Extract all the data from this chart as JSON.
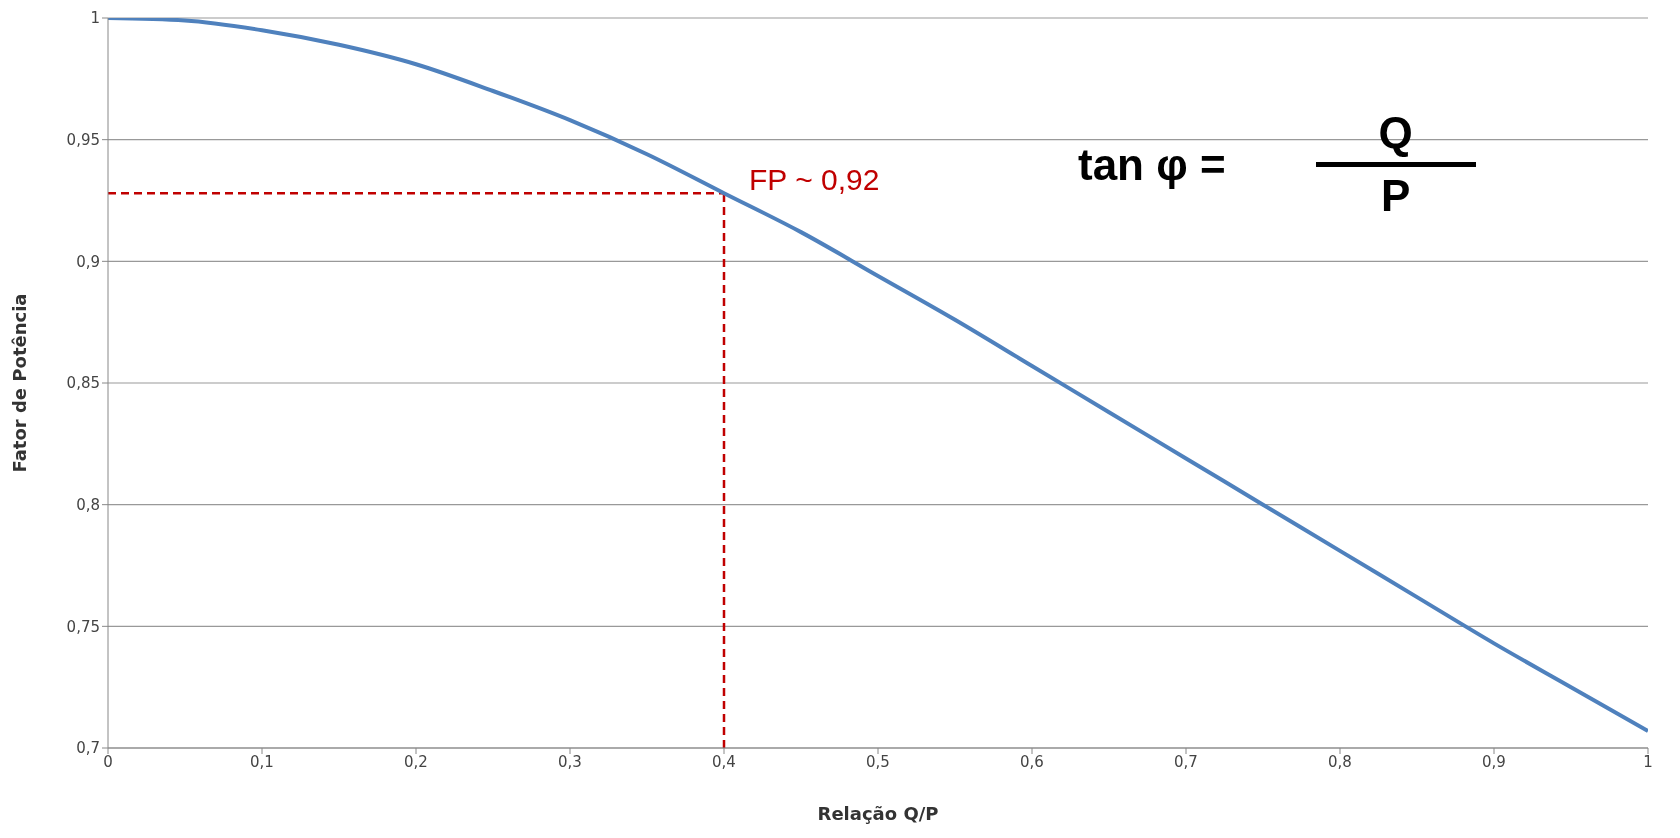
{
  "chart_data": {
    "type": "line",
    "xlabel": "Relação Q/P",
    "ylabel": "Fator de Potência",
    "x": [
      0,
      0.05,
      0.1,
      0.15,
      0.2,
      0.25,
      0.3,
      0.35,
      0.4,
      0.45,
      0.5,
      0.55,
      0.6,
      0.65,
      0.7,
      0.75,
      0.8,
      0.85,
      0.9,
      0.95,
      1
    ],
    "series": [
      {
        "color": "#4f81bd",
        "values": [
          1,
          0.999,
          0.995,
          0.989,
          0.981,
          0.97,
          0.958,
          0.944,
          0.928,
          0.912,
          0.894,
          0.876,
          0.857,
          0.838,
          0.819,
          0.8,
          0.781,
          0.762,
          0.743,
          0.725,
          0.707
        ]
      }
    ],
    "xlim": [
      0,
      1
    ],
    "xticks": [
      0,
      {
        "value": 0.1,
        "label": "0,1"
      },
      {
        "value": 0.2,
        "label": "0,2"
      },
      {
        "value": 0.3,
        "label": "0,3"
      },
      {
        "value": 0.4,
        "label": "0,4"
      },
      {
        "value": 0.5,
        "label": "0,5"
      },
      {
        "value": 0.6,
        "label": "0,6"
      },
      {
        "value": 0.7,
        "label": "0,7"
      },
      {
        "value": 0.8,
        "label": "0,8"
      },
      {
        "value": 0.9,
        "label": "0,9"
      },
      1
    ],
    "ylim": [
      0.7,
      1
    ],
    "yticks": [
      {
        "value": 0.7,
        "label": "0,7"
      },
      {
        "value": 0.75,
        "label": "0,75"
      },
      {
        "value": 0.8,
        "label": "0,8"
      },
      {
        "value": 0.85,
        "label": "0,85"
      },
      {
        "value": 0.9,
        "label": "0,9"
      },
      {
        "value": 0.95,
        "label": "0,95"
      },
      1
    ],
    "ref_lines": [
      {
        "axis": "y",
        "value": 0.928,
        "color": "#c00000",
        "line_style": "dashed"
      },
      {
        "axis": "x",
        "value": 0.4,
        "color": "#c00000",
        "line_style": "dashed"
      }
    ],
    "annotations": [
      {
        "text": "FP ~ 0,92",
        "x": 0.4,
        "y": 0.928
      },
      "tan φ =",
      "Q",
      "P"
    ],
    "grid": "y",
    "marker": "none",
    "line_style": "solid",
    "legend": false
  }
}
